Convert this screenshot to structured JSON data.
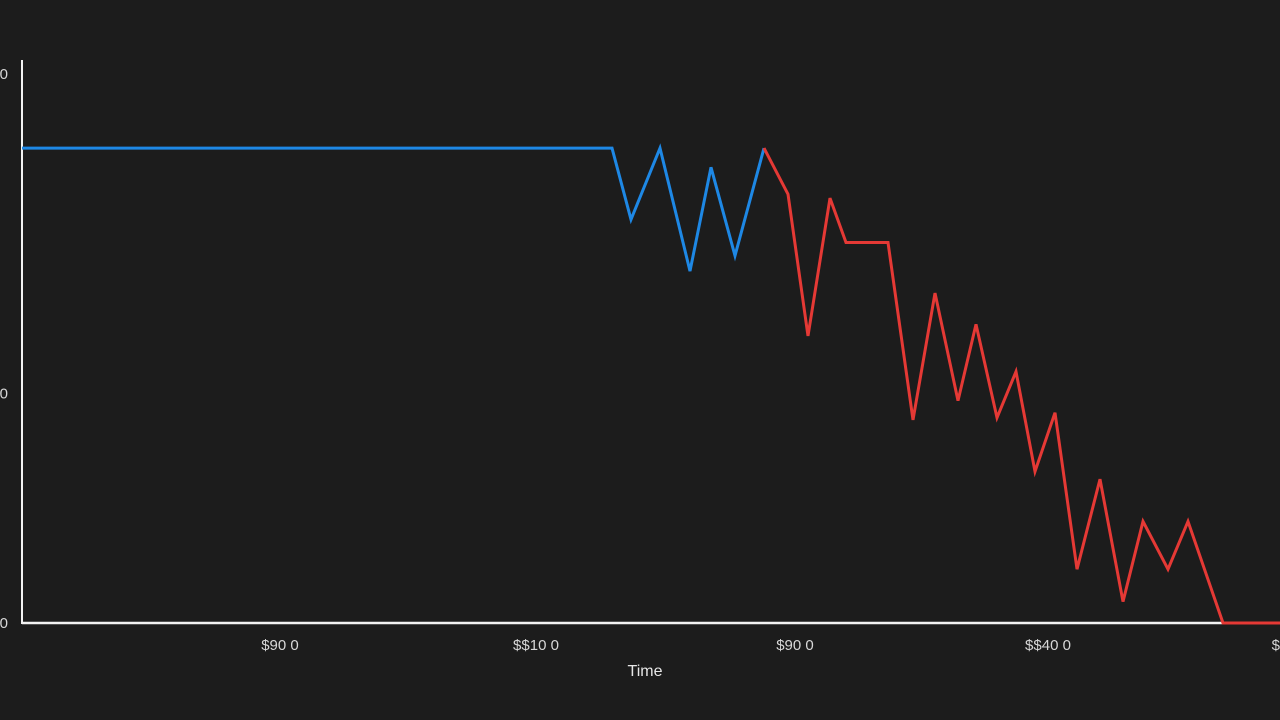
{
  "chart_data": {
    "type": "line",
    "title": "",
    "xlabel": "Time",
    "ylabel": "",
    "xlim": [
      0,
      1280
    ],
    "ylim": [
      0,
      100
    ],
    "grid": false,
    "x_ticks": [
      {
        "x": 280,
        "label": "$90 0"
      },
      {
        "x": 536,
        "label": "$$10 0"
      },
      {
        "x": 795,
        "label": "$90 0"
      },
      {
        "x": 1048,
        "label": "$$40 0"
      },
      {
        "x": 1280,
        "label": "$"
      }
    ],
    "y_ticks": [
      {
        "y": 100,
        "label": "0"
      },
      {
        "y": 41.8,
        "label": "0"
      },
      {
        "y": 0,
        "label": "0"
      }
    ],
    "colors": {
      "background": "#1c1c1c",
      "axis": "#f2f2f2",
      "series_blue": "#1e88e5",
      "series_red": "#e53935",
      "text": "#d8d8d8"
    },
    "series": [
      {
        "color": "#1e88e5",
        "points": [
          [
            22,
            86.5
          ],
          [
            612,
            86.5
          ],
          [
            631,
            73.5
          ],
          [
            660,
            86.5
          ],
          [
            690,
            64.1
          ],
          [
            711,
            83.0
          ],
          [
            735,
            66.9
          ],
          [
            764,
            86.5
          ]
        ]
      },
      {
        "color": "#e53935",
        "points": [
          [
            764,
            86.5
          ],
          [
            788,
            78.1
          ],
          [
            808,
            52.3
          ],
          [
            830,
            77.4
          ],
          [
            846,
            69.3
          ],
          [
            888,
            69.3
          ],
          [
            913,
            37.0
          ],
          [
            935,
            60.1
          ],
          [
            958,
            40.5
          ],
          [
            976,
            54.4
          ],
          [
            997,
            37.4
          ],
          [
            1016,
            45.8
          ],
          [
            1035,
            27.6
          ],
          [
            1055,
            38.3
          ],
          [
            1077,
            9.8
          ],
          [
            1100,
            26.2
          ],
          [
            1123,
            3.9
          ],
          [
            1143,
            18.5
          ],
          [
            1168,
            9.8
          ],
          [
            1188,
            18.5
          ],
          [
            1223,
            0
          ],
          [
            1280,
            0
          ]
        ]
      }
    ]
  }
}
